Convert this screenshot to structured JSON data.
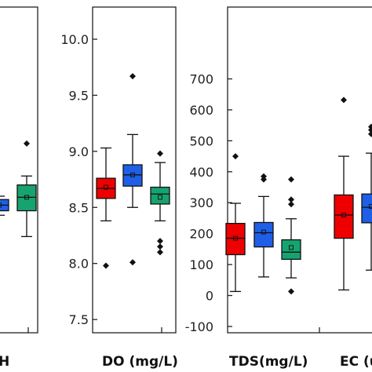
{
  "chart_data": [
    {
      "type": "boxplot",
      "xlabel": "H",
      "series": [
        {
          "color": "#1f5fe8",
          "q1": 8.47,
          "median": 8.52,
          "q3": 8.57,
          "mean": 8.52,
          "whisker_low": 8.43,
          "whisker_high": 8.6,
          "outliers": []
        },
        {
          "color": "#17a36f",
          "q1": 8.47,
          "median": 8.59,
          "q3": 8.7,
          "mean": 8.59,
          "whisker_low": 8.24,
          "whisker_high": 8.78,
          "outliers": [
            9.07
          ]
        }
      ]
    },
    {
      "type": "boxplot",
      "xlabel": "DO (mg/L)",
      "ylim": [
        7.5,
        10.0
      ],
      "yticks": [
        "10.0",
        "9.5",
        "9.0",
        "8.5",
        "8.0",
        "7.5"
      ],
      "series": [
        {
          "color": "#ee0000",
          "q1": 8.58,
          "median": 8.67,
          "q3": 8.76,
          "mean": 8.68,
          "whisker_low": 8.38,
          "whisker_high": 9.03,
          "outliers": [
            7.98
          ]
        },
        {
          "color": "#1f5fe8",
          "q1": 8.69,
          "median": 8.79,
          "q3": 8.88,
          "mean": 8.79,
          "whisker_low": 8.5,
          "whisker_high": 9.15,
          "outliers": [
            9.67,
            8.01
          ]
        },
        {
          "color": "#17a36f",
          "q1": 8.53,
          "median": 8.62,
          "q3": 8.68,
          "mean": 8.59,
          "whisker_low": 8.38,
          "whisker_high": 8.9,
          "outliers": [
            8.98,
            8.2,
            8.15,
            8.1
          ]
        }
      ]
    },
    {
      "type": "boxplot",
      "xlabel": "TDS(mg/L)",
      "ylim": [
        -100,
        700
      ],
      "yticks": [
        "700",
        "600",
        "500",
        "400",
        "300",
        "200",
        "100",
        "0",
        "-100"
      ],
      "series": [
        {
          "color": "#ee0000",
          "q1": 132,
          "median": 185,
          "q3": 233,
          "mean": 185,
          "whisker_low": 13,
          "whisker_high": 298,
          "outliers": [
            450
          ]
        },
        {
          "color": "#1f5fe8",
          "q1": 157,
          "median": 203,
          "q3": 236,
          "mean": 205,
          "whisker_low": 60,
          "whisker_high": 320,
          "outliers": [
            385,
            375
          ]
        },
        {
          "color": "#17a36f",
          "q1": 117,
          "median": 140,
          "q3": 180,
          "mean": 155,
          "whisker_low": 57,
          "whisker_high": 248,
          "outliers": [
            375,
            310,
            295,
            13
          ]
        }
      ]
    },
    {
      "type": "boxplot",
      "xlabel": "EC (u",
      "series": [
        {
          "color": "#ee0000",
          "q1": 185,
          "median": 260,
          "q3": 325,
          "mean": 260,
          "whisker_low": 18,
          "whisker_high": 450,
          "outliers": [
            632
          ]
        },
        {
          "color": "#1f5fe8",
          "q1": 235,
          "median": 285,
          "q3": 328,
          "mean": 288,
          "whisker_low": 82,
          "whisker_high": 460,
          "outliers": [
            545,
            535,
            522
          ]
        }
      ]
    }
  ]
}
